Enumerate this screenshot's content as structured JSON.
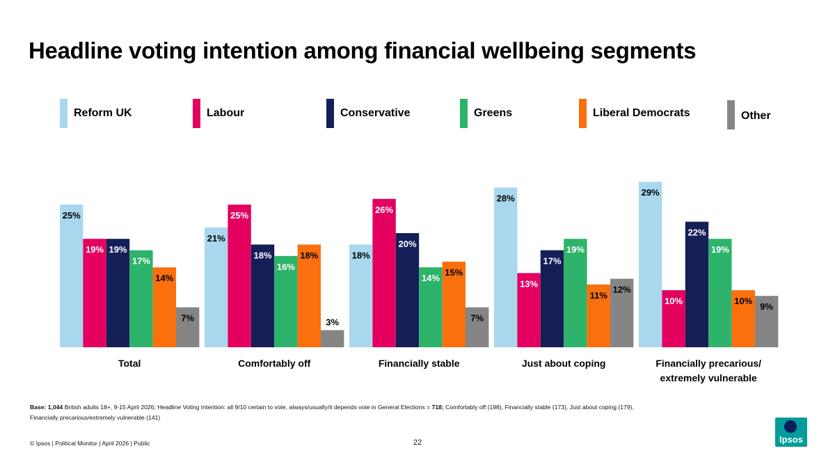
{
  "title": "Headline voting intention among financial wellbeing segments",
  "legend": [
    {
      "name": "Reform UK",
      "color": "#a9d8ee"
    },
    {
      "name": "Labour",
      "color": "#e4005f"
    },
    {
      "name": "Conservative",
      "color": "#141e57"
    },
    {
      "name": "Greens",
      "color": "#2eb36a"
    },
    {
      "name": "Liberal Democrats",
      "color": "#fa700f"
    },
    {
      "name": "Other",
      "color": "#858585"
    }
  ],
  "chart_data": {
    "type": "bar",
    "categories": [
      "Total",
      "Comfortably off",
      "Financially stable",
      "Just about coping",
      "Financially precarious/\nextremely vulnerable"
    ],
    "series": [
      {
        "name": "Reform UK",
        "values": [
          25,
          21,
          18,
          28,
          29
        ]
      },
      {
        "name": "Labour",
        "values": [
          19,
          25,
          26,
          13,
          10
        ]
      },
      {
        "name": "Conservative",
        "values": [
          19,
          18,
          20,
          17,
          22
        ]
      },
      {
        "name": "Greens",
        "values": [
          17,
          16,
          14,
          19,
          19
        ]
      },
      {
        "name": "Liberal Democrats",
        "values": [
          14,
          18,
          15,
          11,
          10
        ]
      },
      {
        "name": "Other",
        "values": [
          7,
          3,
          7,
          12,
          9
        ]
      }
    ],
    "value_suffix": "%",
    "ylim": [
      0,
      30
    ],
    "grid": false,
    "legend_position": "top"
  },
  "base_note": {
    "base_label": "Base: 1,044",
    "text1": " British adults 18+, 9-15 April 2026; Headline Voting Intention:  all  9/10 certain to vote, always/usually/it depends vote in General Elections = ",
    "count_bold": "718;",
    "text2": " Comfortably off (198), Financially stable (173), Just about coping (179), Financially precarious/extremely vulnerable (141)"
  },
  "footer": {
    "left": "© Ipsos | Political Monitor | April 2026 | Public",
    "page_number": "22",
    "logo_text": "Ipsos"
  }
}
